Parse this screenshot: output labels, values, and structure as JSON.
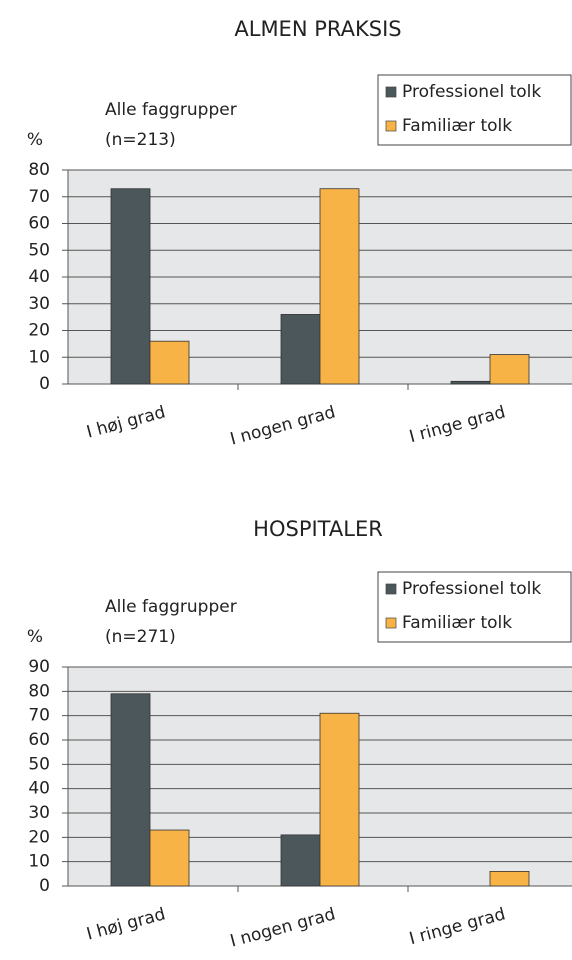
{
  "chart_data": [
    {
      "type": "bar",
      "title": "ALMEN PRAKSIS",
      "subtitle": "Alle faggrupper",
      "note": "(n=213)",
      "ylabel": "%",
      "categories": [
        "I høj grad",
        "I nogen grad",
        "I ringe grad"
      ],
      "series": [
        {
          "name": "Professionel tolk",
          "color": "#4b575b",
          "values": [
            73,
            26,
            1
          ]
        },
        {
          "name": "Familiær tolk",
          "color": "#f8b347",
          "values": [
            16,
            73,
            11
          ]
        }
      ],
      "ylim": [
        0,
        80
      ],
      "yticks": [
        0,
        10,
        20,
        30,
        40,
        50,
        60,
        70,
        80
      ],
      "grid": true,
      "legend": "upper right"
    },
    {
      "type": "bar",
      "title": "HOSPITALER",
      "subtitle": "Alle faggrupper",
      "note": "(n=271)",
      "ylabel": "%",
      "categories": [
        "I høj grad",
        "I nogen grad",
        "I ringe grad"
      ],
      "series": [
        {
          "name": "Professionel tolk",
          "color": "#4b575b",
          "values": [
            79,
            21,
            0
          ]
        },
        {
          "name": "Familiær tolk",
          "color": "#f8b347",
          "values": [
            23,
            71,
            6
          ]
        }
      ],
      "ylim": [
        0,
        90
      ],
      "yticks": [
        0,
        10,
        20,
        30,
        40,
        50,
        60,
        70,
        80,
        90
      ],
      "grid": true,
      "legend": "upper right"
    }
  ]
}
